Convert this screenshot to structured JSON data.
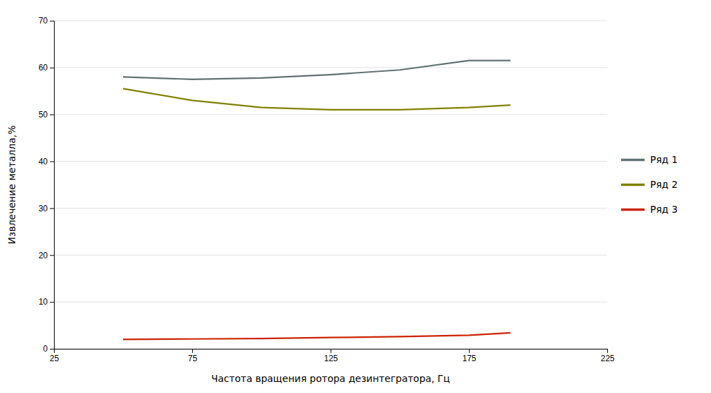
{
  "chart_data": {
    "type": "line",
    "x": [
      50,
      75,
      100,
      125,
      150,
      175,
      190
    ],
    "series": [
      {
        "name": "Ряд 1",
        "color": "#607070",
        "values": [
          58.0,
          57.5,
          57.8,
          58.5,
          59.5,
          61.5,
          61.5
        ]
      },
      {
        "name": "Ряд 2",
        "color": "#808000",
        "values": [
          55.5,
          53.0,
          51.5,
          51.0,
          51.0,
          51.5,
          52.0
        ]
      },
      {
        "name": "Ряд 3",
        "color": "#cc2200",
        "values": [
          2.0,
          2.1,
          2.2,
          2.4,
          2.6,
          2.9,
          3.4
        ]
      }
    ],
    "xlabel": "Частота вращения ротора дезинтегратора, Гц",
    "ylabel": "Извлечение металла,%",
    "xlim": [
      25,
      225
    ],
    "ylim": [
      0,
      70
    ],
    "xticks": [
      25,
      75,
      125,
      175,
      225
    ],
    "yticks": [
      0,
      10,
      20,
      30,
      40,
      50,
      60,
      70
    ],
    "grid": true,
    "legend": "right"
  }
}
